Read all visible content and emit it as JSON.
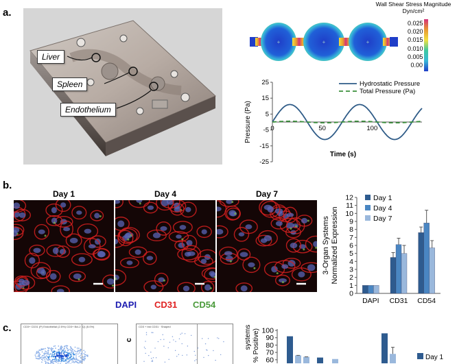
{
  "panels": {
    "a": "a.",
    "b": "b.",
    "c": "c."
  },
  "device": {
    "labels": [
      "Liver",
      "Spleen",
      "Endothelium"
    ]
  },
  "shear_map": {
    "title": "Wall Shear Stress Magnitude",
    "unit": "Dyn/cm²",
    "scale_ticks": [
      "0.025",
      "0.020",
      "0.015",
      "0.010",
      "0.005",
      "0.00"
    ],
    "colors": {
      "max": "#d4317a",
      "high": "#e89830",
      "mid": "#f0e040",
      "low": "#3cc8a0",
      "min": "#1f3ec8"
    }
  },
  "pressure_chart": {
    "type": "line",
    "ylabel": "Pressure (Pa)",
    "xlabel": "Time (s)",
    "ylim": [
      -25,
      25
    ],
    "xlim": [
      0,
      150
    ],
    "y_ticks": [
      25,
      15,
      5,
      -5,
      -15,
      -25
    ],
    "x_ticks": [
      0,
      50,
      100
    ],
    "series": [
      {
        "name": "Hydrostatic Pressure",
        "amplitude": 11,
        "period": 70,
        "color": "#2e5b87"
      },
      {
        "name": "Total Pressure (Pa)",
        "amplitude": 0.5,
        "period": 70,
        "color": "#3a8f3a"
      }
    ]
  },
  "micrographs": {
    "days": [
      "Day 1",
      "Day 4",
      "Day 7"
    ],
    "stains": [
      {
        "label": "DAPI",
        "color": "#1b1bb0"
      },
      {
        "label": "CD31",
        "color": "#e02020"
      },
      {
        "label": "CD54",
        "color": "#4a9a3a"
      }
    ]
  },
  "chart_data": [
    {
      "type": "bar",
      "ylabel": "3-Organ Systems Normalized Expression",
      "categories": [
        "DAPI",
        "CD31",
        "CD54"
      ],
      "ylim": [
        0,
        12
      ],
      "y_ticks": [
        0,
        1,
        2,
        3,
        4,
        5,
        6,
        7,
        8,
        9,
        10,
        11,
        12
      ],
      "legend": "top-left",
      "series": [
        {
          "name": "Day 1",
          "values": [
            1,
            4.5,
            7.6
          ],
          "errors": [
            0,
            0.6,
            0.7
          ],
          "color": "#2e5b8f"
        },
        {
          "name": "Day 4",
          "values": [
            1,
            6.1,
            8.8
          ],
          "errors": [
            0,
            0.8,
            1.6
          ],
          "color": "#4a86c2"
        },
        {
          "name": "Day 7",
          "values": [
            1,
            5.0,
            5.7
          ],
          "errors": [
            0,
            1.0,
            0.9
          ],
          "color": "#9ab8dc"
        }
      ]
    },
    {
      "type": "bar",
      "ylabel_parts": [
        "systems",
        "% Positive)"
      ],
      "ylim_visible": [
        60,
        100
      ],
      "y_ticks": [
        100,
        90,
        80,
        70,
        60
      ],
      "legend_entry": "Day 1",
      "legend_color": "#2e5b8f",
      "visible_bars": [
        {
          "value": 92,
          "color": "#2e5b8f"
        },
        {
          "value": 66,
          "color": "#9ab8dc",
          "err": 0
        },
        {
          "value": 64,
          "color": "#9ab8dc",
          "err": 0
        },
        {
          "value": 63,
          "color": "#2e5b8f"
        },
        {
          "value": 61,
          "color": "#9ab8dc"
        },
        {
          "value": 96,
          "color": "#2e5b8f"
        },
        {
          "value": 68,
          "color": "#9ab8dc",
          "err": 9
        }
      ]
    }
  ],
  "flow_plots": {
    "left_header": "CD3+ CD31 (P) Endothelial (2.5%)   CD3+ Bcl-2 (Q) (5.0%)",
    "right_header": "CD3 + bst CD31 · Shaped",
    "side_label": "c"
  }
}
